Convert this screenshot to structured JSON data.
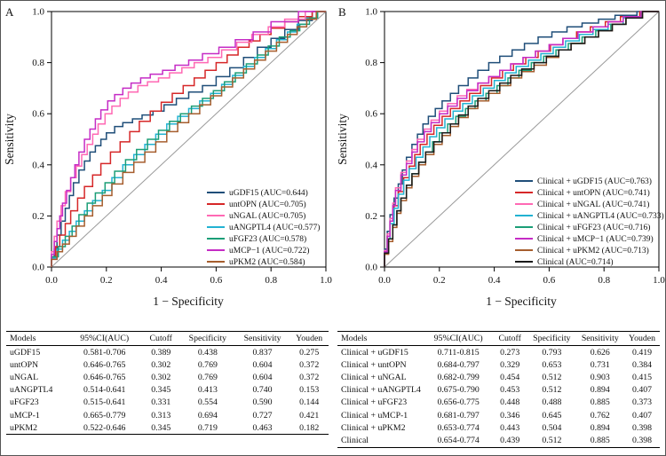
{
  "chart_data": [
    {
      "type": "line",
      "panel_label": "A",
      "xlabel": "1 − Specificity",
      "ylabel": "Sensitivity",
      "xlim": [
        0,
        1
      ],
      "ylim": [
        0,
        1
      ],
      "x_ticks": [
        "0.0",
        "0.2",
        "0.4",
        "0.6",
        "0.8",
        "1.0"
      ],
      "y_ticks": [
        "0.0",
        "0.2",
        "0.4",
        "0.6",
        "0.8",
        "1.0"
      ],
      "grid": false,
      "diagonal_reference": true,
      "legend_position": "bottom-right",
      "series": [
        {
          "id": "uGDF15",
          "label": "uGDF15 (AUC=0.644)",
          "auc": 0.644,
          "color": "#1f4e79",
          "x": [
            0,
            0.02,
            0.05,
            0.08,
            0.12,
            0.16,
            0.2,
            0.26,
            0.33,
            0.41,
            0.5,
            0.6,
            0.7,
            0.8,
            0.9,
            1
          ],
          "y": [
            0,
            0.07,
            0.18,
            0.28,
            0.38,
            0.45,
            0.5,
            0.55,
            0.58,
            0.61,
            0.66,
            0.71,
            0.78,
            0.86,
            0.93,
            1
          ]
        },
        {
          "id": "untOPN",
          "label": "untOPN (AUC=0.705)",
          "auc": 0.705,
          "color": "#d62728",
          "x": [
            0,
            0.03,
            0.07,
            0.12,
            0.18,
            0.25,
            0.32,
            0.4,
            0.48,
            0.56,
            0.64,
            0.72,
            0.8,
            0.9,
            1
          ],
          "y": [
            0,
            0.08,
            0.17,
            0.27,
            0.36,
            0.45,
            0.53,
            0.61,
            0.68,
            0.74,
            0.8,
            0.86,
            0.91,
            0.96,
            1
          ]
        },
        {
          "id": "uNGAL",
          "label": "uNGAL (AUC=0.705)",
          "auc": 0.705,
          "color": "#ff69b4",
          "x": [
            0,
            0.02,
            0.05,
            0.09,
            0.13,
            0.17,
            0.22,
            0.28,
            0.35,
            0.43,
            0.52,
            0.62,
            0.73,
            0.85,
            1
          ],
          "y": [
            0,
            0.12,
            0.24,
            0.35,
            0.44,
            0.52,
            0.6,
            0.66,
            0.71,
            0.74,
            0.78,
            0.82,
            0.88,
            0.94,
            1
          ]
        },
        {
          "id": "uANGPTL4",
          "label": "uANGPTL4 (AUC=0.577)",
          "auc": 0.577,
          "color": "#22b2d2",
          "x": [
            0,
            0.04,
            0.09,
            0.15,
            0.22,
            0.3,
            0.38,
            0.46,
            0.54,
            0.62,
            0.7,
            0.78,
            0.86,
            0.93,
            1
          ],
          "y": [
            0,
            0.07,
            0.14,
            0.22,
            0.3,
            0.4,
            0.48,
            0.56,
            0.62,
            0.68,
            0.75,
            0.82,
            0.89,
            0.95,
            1
          ]
        },
        {
          "id": "uFGF23",
          "label": "uFGF23 (AUC=0.578)",
          "auc": 0.578,
          "color": "#1b9e77",
          "x": [
            0,
            0.05,
            0.1,
            0.16,
            0.23,
            0.31,
            0.39,
            0.47,
            0.55,
            0.63,
            0.71,
            0.79,
            0.87,
            0.94,
            1
          ],
          "y": [
            0,
            0.08,
            0.16,
            0.25,
            0.33,
            0.42,
            0.5,
            0.57,
            0.63,
            0.69,
            0.76,
            0.83,
            0.9,
            0.95,
            1
          ]
        },
        {
          "id": "uMCP-1",
          "label": "uMCP−1 (AUC=0.722)",
          "auc": 0.722,
          "color": "#c52cc5",
          "x": [
            0,
            0.02,
            0.04,
            0.07,
            0.1,
            0.14,
            0.18,
            0.23,
            0.29,
            0.36,
            0.45,
            0.55,
            0.67,
            0.8,
            1
          ],
          "y": [
            0,
            0.1,
            0.2,
            0.3,
            0.4,
            0.5,
            0.58,
            0.65,
            0.7,
            0.74,
            0.77,
            0.81,
            0.86,
            0.92,
            1
          ]
        },
        {
          "id": "uPKM2",
          "label": "uPKM2 (AUC=0.584)",
          "auc": 0.584,
          "color": "#a65e2e",
          "x": [
            0,
            0.04,
            0.09,
            0.15,
            0.22,
            0.3,
            0.38,
            0.46,
            0.54,
            0.62,
            0.7,
            0.78,
            0.86,
            0.93,
            1
          ],
          "y": [
            0,
            0.06,
            0.12,
            0.2,
            0.28,
            0.37,
            0.45,
            0.53,
            0.6,
            0.67,
            0.74,
            0.81,
            0.88,
            0.94,
            1
          ]
        }
      ]
    },
    {
      "type": "line",
      "panel_label": "B",
      "xlabel": "1 − Specificity",
      "ylabel": "Sensitivity",
      "xlim": [
        0,
        1
      ],
      "ylim": [
        0,
        1
      ],
      "x_ticks": [
        "0.0",
        "0.2",
        "0.4",
        "0.6",
        "0.8",
        "1.0"
      ],
      "y_ticks": [
        "0.0",
        "0.2",
        "0.4",
        "0.6",
        "0.8",
        "1.0"
      ],
      "grid": false,
      "diagonal_reference": true,
      "legend_position": "bottom-right",
      "series": [
        {
          "id": "clinical-uGDF15",
          "label": "Clinical + uGDF15 (AUC=0.763)",
          "auc": 0.763,
          "color": "#1f4e79",
          "x": [
            0,
            0.02,
            0.05,
            0.08,
            0.12,
            0.16,
            0.21,
            0.27,
            0.34,
            0.42,
            0.51,
            0.61,
            0.72,
            0.84,
            1
          ],
          "y": [
            0,
            0.14,
            0.27,
            0.38,
            0.48,
            0.56,
            0.62,
            0.68,
            0.74,
            0.8,
            0.85,
            0.9,
            0.94,
            0.97,
            1
          ]
        },
        {
          "id": "clinical-untOPN",
          "label": "Clinical + untOPN (AUC=0.741)",
          "auc": 0.741,
          "color": "#d62728",
          "x": [
            0,
            0.02,
            0.05,
            0.09,
            0.13,
            0.18,
            0.24,
            0.31,
            0.39,
            0.47,
            0.56,
            0.65,
            0.75,
            0.86,
            1
          ],
          "y": [
            0,
            0.12,
            0.24,
            0.35,
            0.44,
            0.52,
            0.59,
            0.65,
            0.71,
            0.77,
            0.82,
            0.87,
            0.92,
            0.96,
            1
          ]
        },
        {
          "id": "clinical-uNGAL",
          "label": "Clinical + uNGAL (AUC=0.741)",
          "auc": 0.741,
          "color": "#ff69b4",
          "x": [
            0,
            0.02,
            0.04,
            0.08,
            0.12,
            0.17,
            0.23,
            0.3,
            0.38,
            0.46,
            0.55,
            0.65,
            0.76,
            0.87,
            1
          ],
          "y": [
            0,
            0.13,
            0.25,
            0.37,
            0.46,
            0.54,
            0.61,
            0.67,
            0.72,
            0.77,
            0.82,
            0.87,
            0.92,
            0.96,
            1
          ]
        },
        {
          "id": "clinical-uANGPTL4",
          "label": "Clinical + uANGPTL4 (AUC=0.733)",
          "auc": 0.733,
          "color": "#22b2d2",
          "x": [
            0,
            0.02,
            0.05,
            0.09,
            0.14,
            0.19,
            0.25,
            0.32,
            0.4,
            0.48,
            0.57,
            0.66,
            0.76,
            0.87,
            1
          ],
          "y": [
            0,
            0.11,
            0.23,
            0.34,
            0.43,
            0.51,
            0.58,
            0.64,
            0.7,
            0.76,
            0.81,
            0.86,
            0.91,
            0.95,
            1
          ]
        },
        {
          "id": "clinical-uFGF23",
          "label": "Clinical + uFGF23 (AUC=0.716)",
          "auc": 0.716,
          "color": "#1b9e77",
          "x": [
            0,
            0.03,
            0.06,
            0.1,
            0.15,
            0.2,
            0.26,
            0.33,
            0.41,
            0.49,
            0.58,
            0.67,
            0.77,
            0.88,
            1
          ],
          "y": [
            0,
            0.11,
            0.22,
            0.32,
            0.41,
            0.49,
            0.56,
            0.62,
            0.68,
            0.74,
            0.8,
            0.85,
            0.9,
            0.95,
            1
          ]
        },
        {
          "id": "clinical-uMCP-1",
          "label": "Clinical + uMCP−1 (AUC=0.739)",
          "auc": 0.739,
          "color": "#c52cc5",
          "x": [
            0,
            0.02,
            0.04,
            0.08,
            0.12,
            0.17,
            0.23,
            0.3,
            0.38,
            0.46,
            0.55,
            0.65,
            0.76,
            0.87,
            1
          ],
          "y": [
            0,
            0.12,
            0.24,
            0.36,
            0.45,
            0.53,
            0.6,
            0.66,
            0.72,
            0.77,
            0.82,
            0.87,
            0.92,
            0.96,
            1
          ]
        },
        {
          "id": "clinical-uPKM2",
          "label": "Clinical + uPKM2 (AUC=0.713)",
          "auc": 0.713,
          "color": "#a65e2e",
          "x": [
            0,
            0.03,
            0.06,
            0.1,
            0.15,
            0.21,
            0.27,
            0.34,
            0.42,
            0.5,
            0.59,
            0.68,
            0.78,
            0.88,
            1
          ],
          "y": [
            0,
            0.1,
            0.21,
            0.31,
            0.4,
            0.48,
            0.55,
            0.62,
            0.68,
            0.74,
            0.79,
            0.85,
            0.9,
            0.95,
            1
          ]
        },
        {
          "id": "clinical",
          "label": "Clinical (AUC=0.714)",
          "auc": 0.714,
          "color": "#1a1a1a",
          "x": [
            0,
            0.03,
            0.06,
            0.1,
            0.15,
            0.21,
            0.27,
            0.34,
            0.42,
            0.5,
            0.59,
            0.68,
            0.78,
            0.88,
            1
          ],
          "y": [
            0,
            0.11,
            0.22,
            0.32,
            0.41,
            0.49,
            0.56,
            0.63,
            0.69,
            0.75,
            0.8,
            0.85,
            0.9,
            0.95,
            1
          ]
        }
      ]
    }
  ],
  "tables": [
    {
      "columns": [
        "Models",
        "95%CI(AUC)",
        "Cutoff",
        "Specificity",
        "Sensitivity",
        "Youden"
      ],
      "rows": [
        [
          "uGDF15",
          "0.581-0.706",
          "0.389",
          "0.438",
          "0.837",
          "0.275"
        ],
        [
          "untOPN",
          "0.646-0.765",
          "0.302",
          "0.769",
          "0.604",
          "0.372"
        ],
        [
          "uNGAL",
          "0.646-0.765",
          "0.302",
          "0.769",
          "0.604",
          "0.372"
        ],
        [
          "uANGPTL4",
          "0.514-0.641",
          "0.345",
          "0.413",
          "0.740",
          "0.153"
        ],
        [
          "uFGF23",
          "0.515-0.641",
          "0.331",
          "0.554",
          "0.590",
          "0.144"
        ],
        [
          "uMCP-1",
          "0.665-0.779",
          "0.313",
          "0.694",
          "0.727",
          "0.421"
        ],
        [
          "uPKM2",
          "0.522-0.646",
          "0.345",
          "0.719",
          "0.463",
          "0.182"
        ]
      ]
    },
    {
      "columns": [
        "Models",
        "95%CI(AUC)",
        "Cutoff",
        "Specificity",
        "Sensitivity",
        "Youden"
      ],
      "rows": [
        [
          "Clinical + uGDF15",
          "0.711-0.815",
          "0.273",
          "0.793",
          "0.626",
          "0.419"
        ],
        [
          "Clinical + untOPN",
          "0.684-0.797",
          "0.329",
          "0.653",
          "0.731",
          "0.384"
        ],
        [
          "Clinical + uNGAL",
          "0.682-0.799",
          "0.454",
          "0.512",
          "0.903",
          "0.415"
        ],
        [
          "Clinical + uANGPTL4",
          "0.675-0.790",
          "0.453",
          "0.512",
          "0.894",
          "0.407"
        ],
        [
          "Clinical + uFGF23",
          "0.656-0.775",
          "0.448",
          "0.488",
          "0.885",
          "0.373"
        ],
        [
          "Clinical + uMCP-1",
          "0.681-0.797",
          "0.346",
          "0.645",
          "0.762",
          "0.407"
        ],
        [
          "Clinical + uPKM2",
          "0.653-0.774",
          "0.443",
          "0.504",
          "0.894",
          "0.398"
        ],
        [
          "Clinical",
          "0.654-0.774",
          "0.439",
          "0.512",
          "0.885",
          "0.398"
        ]
      ]
    }
  ],
  "colors": {
    "reference_line": "#9a9a9a",
    "axis": "#000000"
  }
}
